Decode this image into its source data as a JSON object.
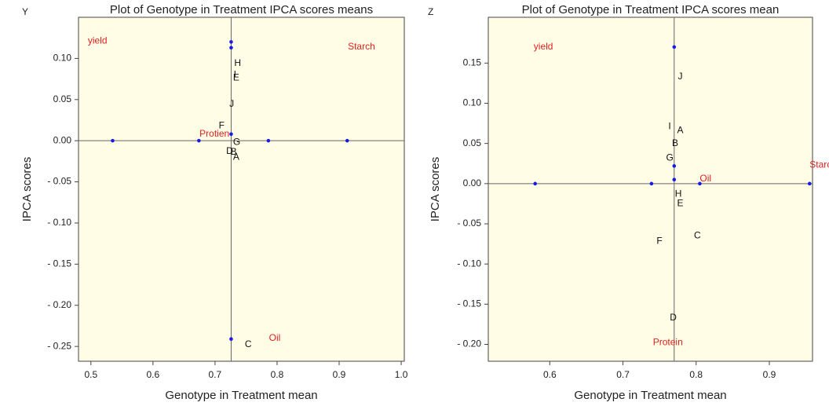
{
  "chart_data": [
    {
      "type": "scatter",
      "panel_label": "Y",
      "title": "Plot of Genotype in Treatment IPCA scores means",
      "x_label": "Genotype in Treatment mean",
      "y_label": "IPCA scores",
      "xlim": [
        0.48,
        1.005
      ],
      "ylim": [
        -0.268,
        0.15
      ],
      "xticks": [
        0.5,
        0.6,
        0.7,
        0.8,
        0.9,
        {
          "value": 1,
          "label": "1.0"
        }
      ],
      "yticks": [
        {
          "value": 0.1,
          "label": "0.10"
        },
        0.05,
        {
          "value": 0,
          "label": "0.00"
        },
        {
          "value": -0.05,
          "label": "- 0.05"
        },
        {
          "value": -0.1,
          "label": "- 0.10"
        },
        {
          "value": -0.15,
          "label": "- 0.15"
        },
        {
          "value": -0.2,
          "label": "- 0.20"
        },
        {
          "value": -0.25,
          "label": "- 0.25"
        }
      ],
      "vline": 0.726,
      "hline": 0,
      "background": "#fffde6",
      "series": [
        {
          "color": "#1a1ae6",
          "x": [
            0.535,
            0.674,
            0.786,
            0.913,
            0.726,
            0.726,
            0.726,
            0.726
          ],
          "values": [
            0,
            0,
            0,
            0,
            0.12,
            0.113,
            -0.241,
            0.008
          ]
        },
        {
          "color": "#e02020",
          "labels": [
            "yield",
            "Starch",
            "Protien",
            "Oil"
          ],
          "x": [
            0.495,
            0.914,
            0.675,
            0.787
          ],
          "values": [
            0.121,
            0.114,
            0.008,
            -0.24
          ]
        },
        {
          "color": "#111111",
          "labels": [
            "H",
            "I",
            "E",
            "J",
            "F",
            "G",
            "D",
            "B",
            "A",
            "C"
          ],
          "x": [
            0.731,
            0.73,
            0.729,
            0.723,
            0.706,
            0.729,
            0.718,
            0.725,
            0.729,
            0.748
          ],
          "values": [
            0.094,
            0.08,
            0.076,
            0.044,
            0.018,
            -0.002,
            -0.013,
            -0.014,
            -0.02,
            -0.248
          ]
        }
      ]
    },
    {
      "type": "scatter",
      "panel_label": "Z",
      "title": "Plot of Genotype in Treatment IPCA scores mean",
      "x_label": "Genotype in Treatment mean",
      "y_label": "IPCA scores",
      "xlim": [
        0.516,
        0.959
      ],
      "ylim": [
        -0.221,
        0.207
      ],
      "xticks": [
        0.6,
        0.7,
        0.8,
        0.9
      ],
      "yticks": [
        0.15,
        {
          "value": 0.1,
          "label": "0.10"
        },
        0.05,
        {
          "value": 0,
          "label": "0.00"
        },
        {
          "value": -0.05,
          "label": "- 0.05"
        },
        {
          "value": -0.1,
          "label": "- 0.10"
        },
        {
          "value": -0.15,
          "label": "- 0.15"
        },
        {
          "value": -0.2,
          "label": "- 0.20"
        }
      ],
      "vline": 0.77,
      "hline": 0,
      "background": "#fffde6",
      "series": [
        {
          "color": "#1a1ae6",
          "x": [
            0.58,
            0.739,
            0.805,
            0.955,
            0.77,
            0.77,
            0.77
          ],
          "values": [
            0,
            0,
            0,
            0,
            0.17,
            0.022,
            0.005
          ]
        },
        {
          "color": "#e02020",
          "labels": [
            "yield",
            "Starch",
            "Oil",
            "Protein"
          ],
          "x": [
            0.578,
            0.955,
            0.805,
            0.741
          ],
          "values": [
            0.17,
            0.023,
            0.006,
            -0.198
          ]
        },
        {
          "color": "#111111",
          "labels": [
            "J",
            "I",
            "A",
            "B",
            "G",
            "H",
            "E",
            "C",
            "F",
            "D"
          ],
          "x": [
            0.775,
            0.762,
            0.774,
            0.767,
            0.759,
            0.771,
            0.774,
            0.797,
            0.746,
            0.764
          ],
          "values": [
            0.133,
            0.071,
            0.066,
            0.05,
            0.032,
            -0.013,
            -0.025,
            -0.065,
            -0.072,
            -0.167
          ]
        }
      ]
    }
  ]
}
